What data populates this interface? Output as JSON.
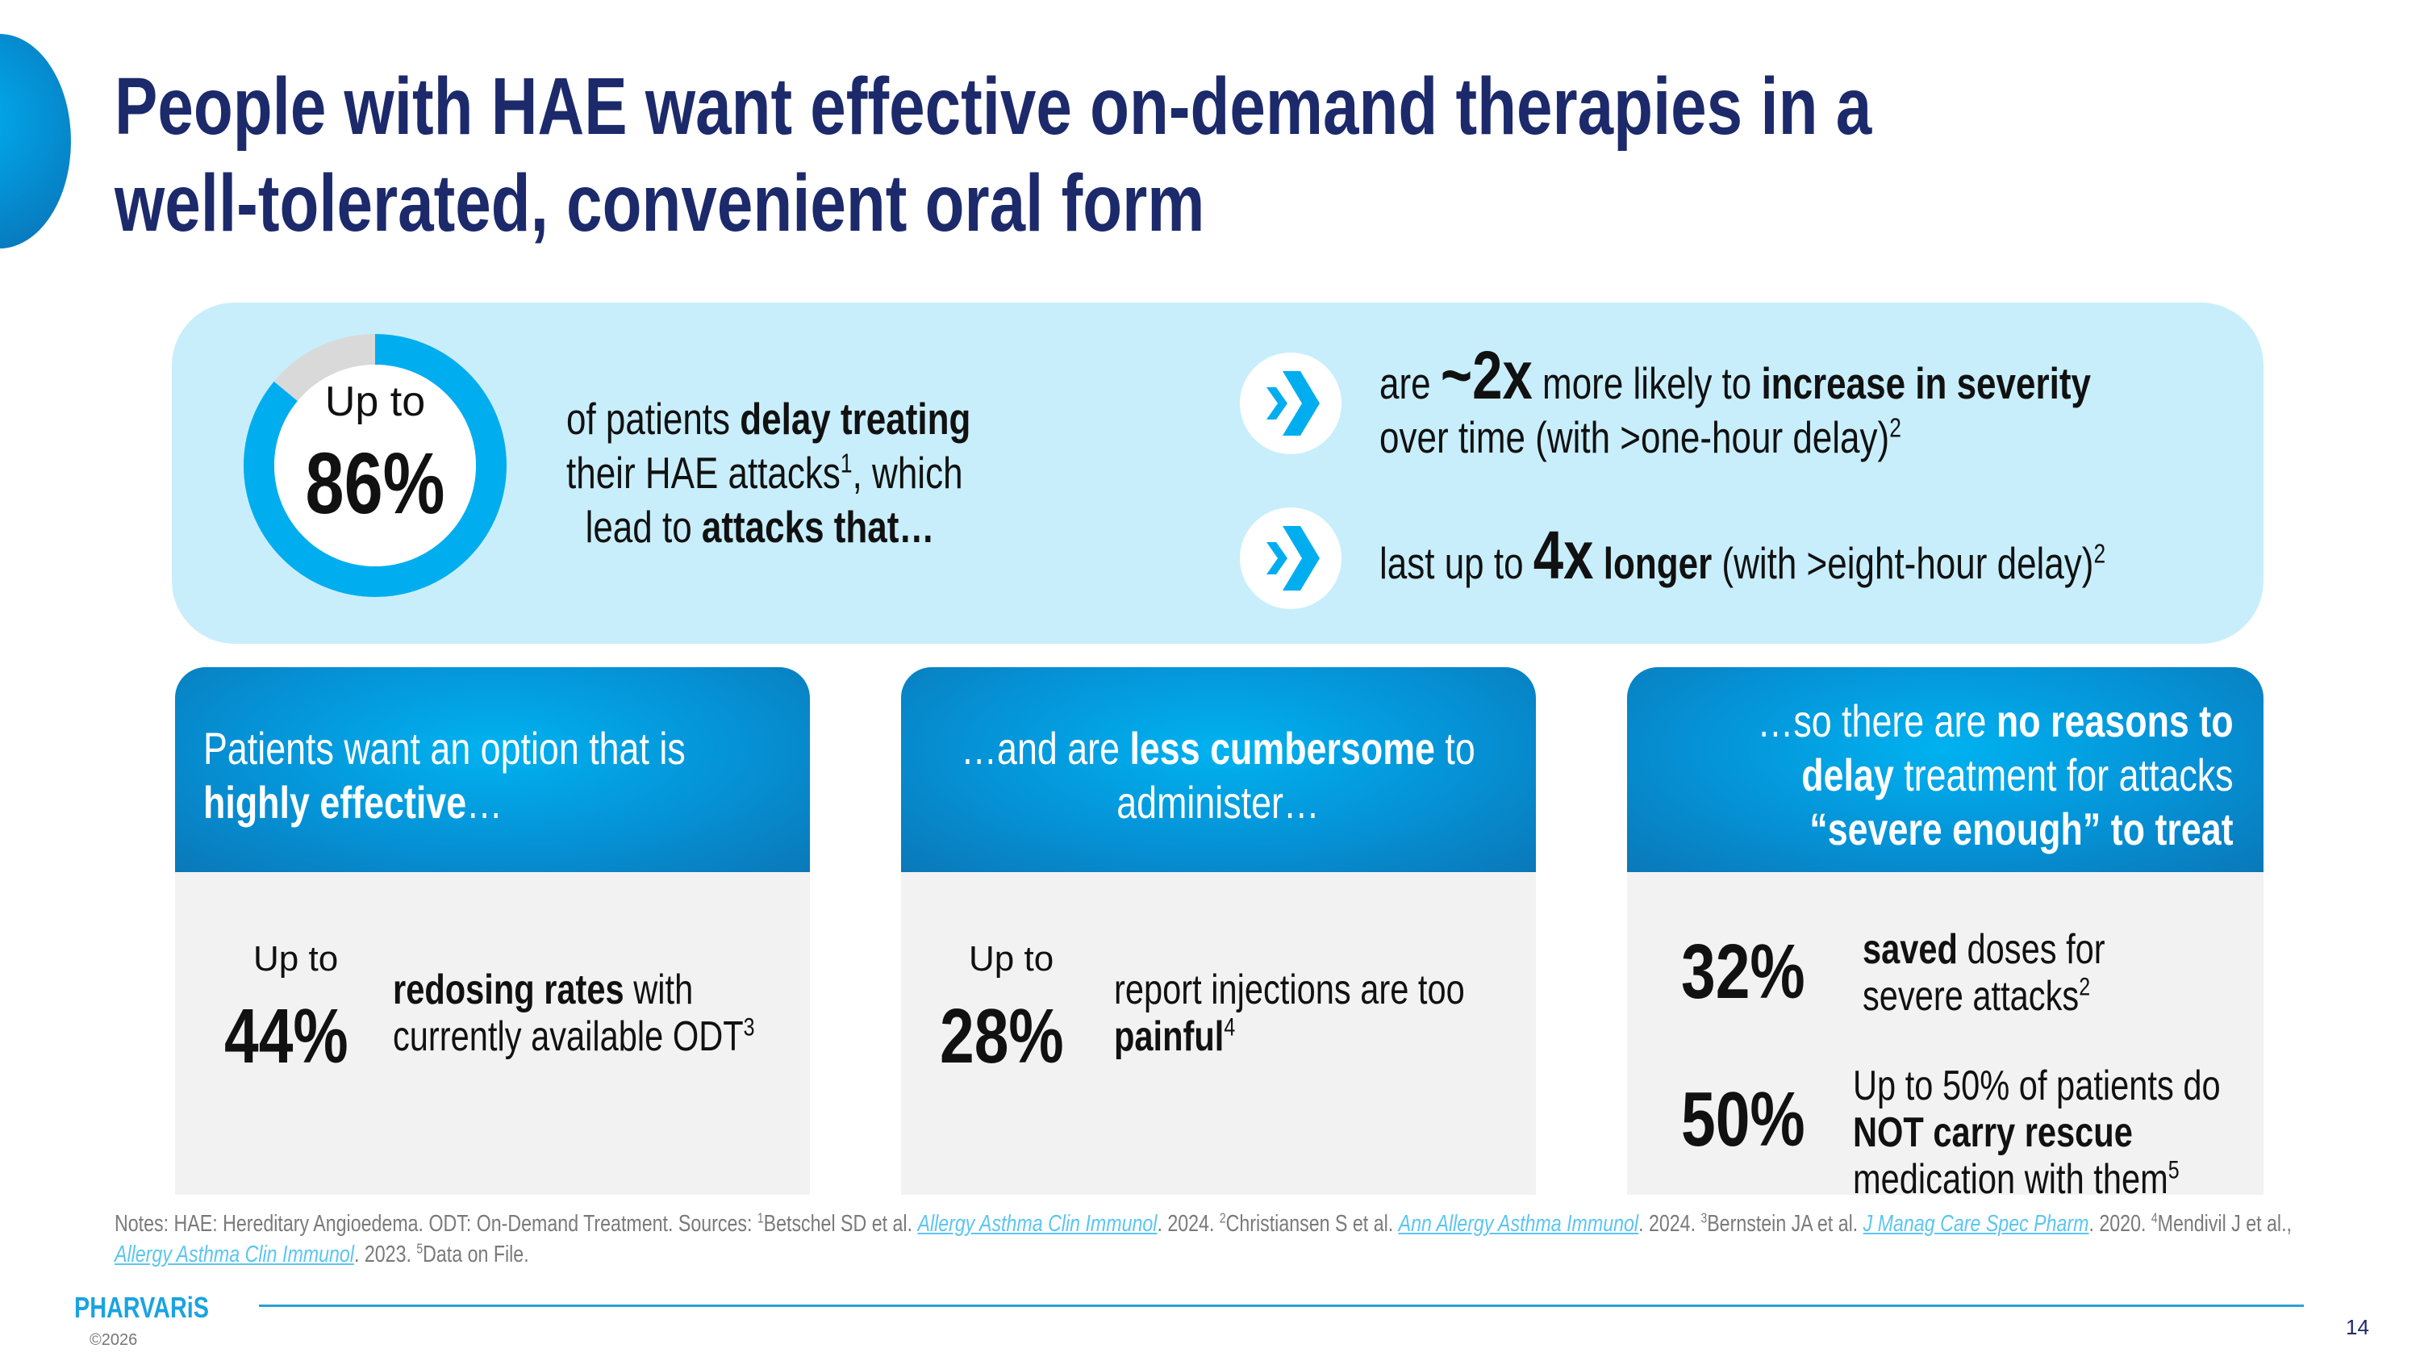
{
  "title": {
    "line1": "People with HAE want effective on-demand therapies in a",
    "line2": "well-tolerated, convenient oral form"
  },
  "colors": {
    "navy": "#1c2a6b",
    "accent": "#00aeef",
    "panel": "#c8eefb",
    "donut_rest": "#d9d9d9"
  },
  "top_panel": {
    "donut": {
      "percent": 86,
      "label_top": "Up to",
      "value": "86%"
    },
    "lead": {
      "l1a": "of patients ",
      "l1b": "delay treating",
      "l2a": "their HAE attacks",
      "l2sup": "1",
      "l2b": ", which",
      "l3a": "lead to ",
      "l3b": "attacks that…"
    },
    "point1": {
      "icon": "double-chevron-right-icon",
      "a": "are ",
      "big": "~2x",
      "b": " more likely to ",
      "c": "increase in severity",
      "l2": "over time (with >one-hour delay)",
      "sup": "2"
    },
    "point2": {
      "icon": "double-chevron-right-icon",
      "a": "last up to ",
      "big": "4x",
      "c": " longer",
      "b": " (with >eight-hour delay)",
      "sup": "2"
    }
  },
  "cards": [
    {
      "h1a": "Patients want an option that is",
      "h2": "highly effective",
      "h2b": "…",
      "upto": "Up to",
      "value": "44%",
      "t1b": "redosing rates",
      "t1": " with",
      "t2": "currently available ODT",
      "sup": "3"
    },
    {
      "h1a": "…and are ",
      "h1b": "less cumbersome",
      "h1c": " to",
      "h2": "administer…",
      "upto": "Up to",
      "value": "28%",
      "t1": "report injections are too",
      "t2b": "painful",
      "sup": "4"
    },
    {
      "h1a": "…so there are ",
      "h1b": "no reasons to",
      "h2b": "delay",
      "h2": " treatment for attacks",
      "h3": "“severe enough” to treat",
      "s1": {
        "value": "32%",
        "t1b": "saved",
        "t1": " doses for",
        "t2": "severe attacks",
        "sup": "2"
      },
      "s2": {
        "value": "50%",
        "t1": "Up to 50% of patients do",
        "t2b": "NOT carry rescue",
        "t3": "medication with them",
        "sup": "5"
      }
    }
  ],
  "notes": {
    "a": "Notes: HAE: Hereditary Angioedema. ODT: On-Demand Treatment. Sources: ",
    "s1": "1",
    "b": "Betschel SD et al. ",
    "l1": "Allergy Asthma Clin Immunol",
    "c": ". 2024. ",
    "s2": "2",
    "d": "Christiansen S et al. ",
    "l2": "Ann Allergy Asthma Immunol",
    "e": ". 2024. ",
    "s3": "3",
    "f": "Bernstein JA et al. ",
    "l3": "J Manag Care Spec Pharm",
    "g": ". 2020. ",
    "s4": "4",
    "h": "Mendivil J et al., ",
    "l4": "Allergy Asthma Clin Immunol",
    "i": ". 2023. ",
    "s5": "5",
    "j": "Data on File."
  },
  "footer": {
    "logo": "PHARVARiS",
    "copyright": "©2026",
    "page": "14"
  }
}
